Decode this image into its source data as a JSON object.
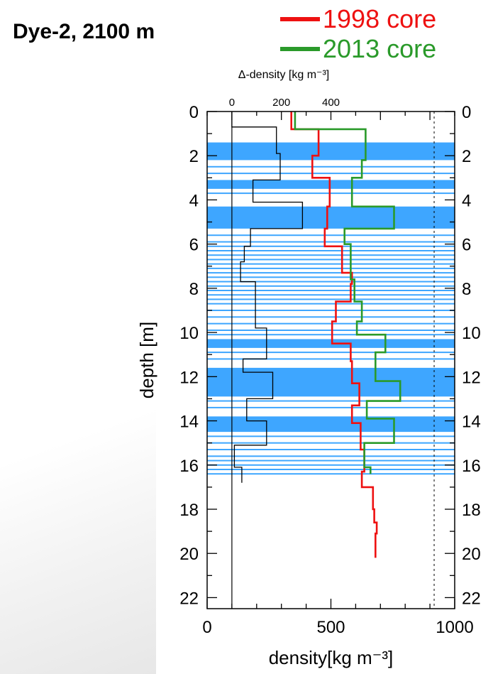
{
  "title": "Dye-2, 2100 m",
  "chart_data": {
    "type": "line",
    "xlabel": "density[kg m⁻³]",
    "ylabel": "depth [m]",
    "x2label": "Δ-density [kg m⁻³]",
    "xlim": [
      0,
      1000
    ],
    "ylim": [
      22.5,
      0
    ],
    "x2lim": [
      -100,
      900
    ],
    "xticks": [
      0,
      500,
      1000
    ],
    "x2ticks": [
      0,
      200,
      400
    ],
    "yticks": [
      0,
      2,
      4,
      6,
      8,
      10,
      12,
      14,
      16,
      18,
      20,
      22
    ],
    "reference_lines": {
      "solid_x": 100,
      "dashed_x": 917
    },
    "series": [
      {
        "name": "1998 core",
        "color": "#ee1111",
        "points": [
          [
            340,
            0.0
          ],
          [
            340,
            0.8
          ],
          [
            450,
            0.8
          ],
          [
            450,
            2.0
          ],
          [
            425,
            2.0
          ],
          [
            425,
            3.0
          ],
          [
            495,
            3.0
          ],
          [
            495,
            4.3
          ],
          [
            485,
            4.3
          ],
          [
            485,
            5.3
          ],
          [
            475,
            5.3
          ],
          [
            475,
            6.1
          ],
          [
            545,
            6.1
          ],
          [
            545,
            7.3
          ],
          [
            585,
            7.3
          ],
          [
            585,
            7.8
          ],
          [
            580,
            7.8
          ],
          [
            580,
            8.6
          ],
          [
            520,
            8.6
          ],
          [
            520,
            9.5
          ],
          [
            505,
            9.5
          ],
          [
            505,
            10.5
          ],
          [
            580,
            10.5
          ],
          [
            580,
            11.3
          ],
          [
            585,
            11.3
          ],
          [
            585,
            12.3
          ],
          [
            615,
            12.3
          ],
          [
            615,
            13.3
          ],
          [
            585,
            13.3
          ],
          [
            585,
            14.1
          ],
          [
            620,
            14.1
          ],
          [
            620,
            15.3
          ],
          [
            635,
            15.3
          ],
          [
            635,
            16.3
          ],
          [
            625,
            16.3
          ],
          [
            625,
            17.0
          ],
          [
            670,
            17.0
          ],
          [
            670,
            18.0
          ],
          [
            675,
            18.0
          ],
          [
            675,
            18.6
          ],
          [
            685,
            18.6
          ],
          [
            685,
            19.1
          ],
          [
            680,
            19.1
          ],
          [
            680,
            20.2
          ]
        ]
      },
      {
        "name": "2013 core",
        "color": "#2a9a2a",
        "points": [
          [
            355,
            0.0
          ],
          [
            355,
            0.8
          ],
          [
            640,
            0.8
          ],
          [
            640,
            2.2
          ],
          [
            625,
            2.2
          ],
          [
            625,
            3.0
          ],
          [
            585,
            3.0
          ],
          [
            585,
            4.0
          ],
          [
            585,
            4.0
          ],
          [
            585,
            4.3
          ],
          [
            755,
            4.3
          ],
          [
            755,
            5.3
          ],
          [
            555,
            5.3
          ],
          [
            555,
            6.0
          ],
          [
            580,
            6.0
          ],
          [
            580,
            7.6
          ],
          [
            595,
            7.6
          ],
          [
            595,
            8.6
          ],
          [
            625,
            8.6
          ],
          [
            625,
            9.5
          ],
          [
            605,
            9.5
          ],
          [
            605,
            10.1
          ],
          [
            720,
            10.1
          ],
          [
            720,
            10.9
          ],
          [
            680,
            10.9
          ],
          [
            680,
            11.6
          ],
          [
            680,
            12.2
          ],
          [
            780,
            12.2
          ],
          [
            780,
            13.1
          ],
          [
            645,
            13.1
          ],
          [
            645,
            13.9
          ],
          [
            755,
            13.9
          ],
          [
            755,
            15.0
          ],
          [
            635,
            15.0
          ],
          [
            635,
            16.1
          ],
          [
            660,
            16.1
          ],
          [
            660,
            16.4
          ]
        ]
      },
      {
        "name": "",
        "color": "#000000",
        "axis": "x2",
        "points": [
          [
            0,
            0.0
          ],
          [
            0,
            0.7
          ],
          [
            180,
            0.7
          ],
          [
            180,
            1.9
          ],
          [
            195,
            1.9
          ],
          [
            195,
            3.1
          ],
          [
            85,
            3.1
          ],
          [
            85,
            4.1
          ],
          [
            285,
            4.1
          ],
          [
            285,
            5.3
          ],
          [
            75,
            5.3
          ],
          [
            75,
            6.1
          ],
          [
            50,
            6.1
          ],
          [
            50,
            6.8
          ],
          [
            35,
            6.8
          ],
          [
            35,
            7.7
          ],
          [
            95,
            7.7
          ],
          [
            95,
            9.8
          ],
          [
            140,
            9.8
          ],
          [
            140,
            11.2
          ],
          [
            45,
            11.2
          ],
          [
            45,
            11.8
          ],
          [
            165,
            11.8
          ],
          [
            165,
            13.0
          ],
          [
            60,
            13.0
          ],
          [
            60,
            14.0
          ],
          [
            140,
            14.0
          ],
          [
            140,
            15.1
          ],
          [
            10,
            15.1
          ],
          [
            10,
            16.1
          ],
          [
            40,
            16.1
          ],
          [
            40,
            16.8
          ]
        ]
      }
    ],
    "shaded_bands": {
      "color": "#3ea6ff",
      "solid": [
        [
          1.4,
          2.2
        ],
        [
          3.1,
          3.5
        ],
        [
          4.3,
          5.3
        ],
        [
          10.3,
          10.7
        ],
        [
          11.6,
          12.9
        ],
        [
          13.8,
          14.5
        ]
      ],
      "lines": [
        2.5,
        2.8,
        3.7,
        5.6,
        5.9,
        6.1,
        6.3,
        6.5,
        6.7,
        6.9,
        7.1,
        7.3,
        7.5,
        7.7,
        7.9,
        8.1,
        8.3,
        8.5,
        8.7,
        9.0,
        9.3,
        9.6,
        9.9,
        10.1,
        10.9,
        11.2,
        13.1,
        13.4,
        14.7,
        15.0,
        15.3,
        15.6,
        15.8,
        16.0,
        16.2,
        16.4
      ]
    }
  }
}
